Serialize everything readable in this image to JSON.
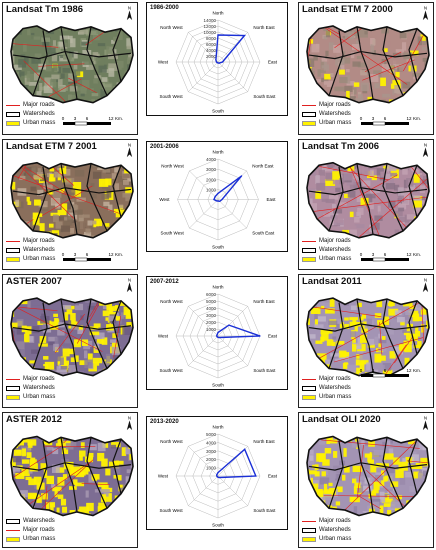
{
  "legend": {
    "roads": "Major roads",
    "watersheds": "Watersheds",
    "urban": "Urban mass"
  },
  "scale": {
    "ticks": [
      "0",
      "3",
      "6",
      "12"
    ],
    "unit": "Km."
  },
  "compass": [
    "North",
    "North East",
    "East",
    "South East",
    "South",
    "South West",
    "West",
    "North West"
  ],
  "maps": [
    {
      "id": "m1",
      "title": "Landsat Tm 1986",
      "urban": 0.05,
      "palette": "green"
    },
    {
      "id": "m2",
      "title": "Landsat ETM 7 2000",
      "urban": 0.12,
      "palette": "pink"
    },
    {
      "id": "m3",
      "title": "Landsat ETM 7 2001",
      "urban": 0.2,
      "palette": "brown"
    },
    {
      "id": "m4",
      "title": "Landsat Tm 2006",
      "urban": 0.18,
      "palette": "pinkpurple"
    },
    {
      "id": "m5",
      "title": "ASTER  2007",
      "urban": 0.45,
      "palette": "purple"
    },
    {
      "id": "m6",
      "title": "Landsat  2011",
      "urban": 0.55,
      "palette": "lavender"
    },
    {
      "id": "m7",
      "title": "ASTER  2012",
      "urban": 0.75,
      "palette": "purple"
    },
    {
      "id": "m8",
      "title": "Landsat OLI 2020",
      "urban": 0.5,
      "palette": "lavender"
    }
  ],
  "chart_data": [
    {
      "type": "radar",
      "title": "1986-2000",
      "categories": [
        "North",
        "North East",
        "East",
        "South East",
        "South",
        "South West",
        "West",
        "North West"
      ],
      "rmax": 14000,
      "ticks": [
        "2000",
        "4000",
        "6000",
        "8000",
        "10000",
        "12000",
        "14000"
      ],
      "values": [
        9000,
        12500,
        1500,
        500,
        300,
        300,
        500,
        1000
      ]
    },
    {
      "type": "radar",
      "title": "2001-2006",
      "categories": [
        "North",
        "North East",
        "East",
        "South East",
        "South",
        "South West",
        "West",
        "North West"
      ],
      "rmax": 4000,
      "ticks": [
        "1000",
        "2000",
        "3000",
        "4000"
      ],
      "values": [
        600,
        3300,
        400,
        250,
        150,
        200,
        400,
        400
      ]
    },
    {
      "type": "radar",
      "title": "2007-2012",
      "categories": [
        "North",
        "North East",
        "East",
        "South East",
        "South",
        "South West",
        "West",
        "North West"
      ],
      "rmax": 6000,
      "ticks": [
        "1000",
        "2000",
        "3000",
        "4000",
        "5000",
        "6000"
      ],
      "values": [
        500,
        2200,
        6000,
        300,
        200,
        150,
        200,
        200
      ]
    },
    {
      "type": "radar",
      "title": "2013-2020",
      "categories": [
        "North",
        "North East",
        "East",
        "South East",
        "South",
        "South West",
        "West",
        "North West"
      ],
      "rmax": 5000,
      "ticks": [
        "1000",
        "2000",
        "3000",
        "4000",
        "5000"
      ],
      "values": [
        400,
        4500,
        4500,
        250,
        150,
        100,
        150,
        200
      ]
    }
  ]
}
